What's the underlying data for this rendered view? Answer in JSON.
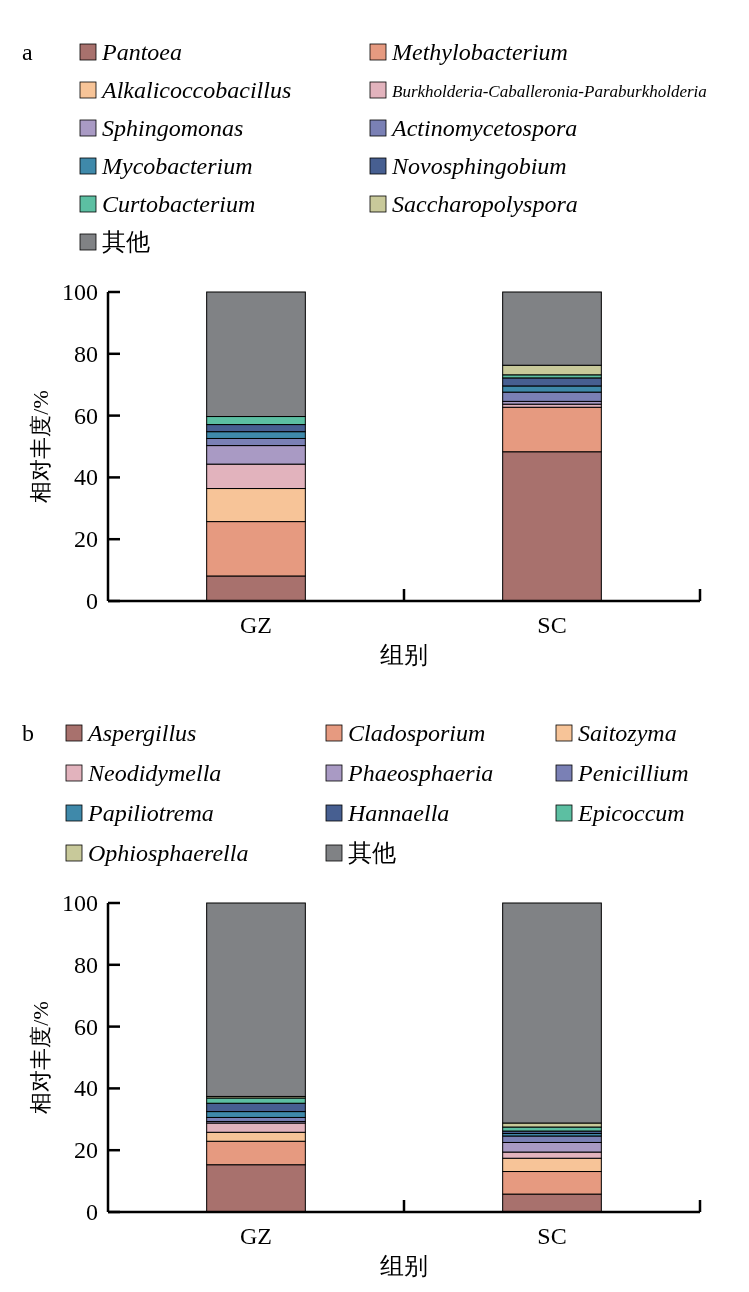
{
  "chart_data": [
    {
      "type": "bar",
      "title": "a",
      "stacked": true,
      "legend": "top",
      "ylabel": "相对丰度/%",
      "xlabel": "组别",
      "categories": [
        "GZ",
        "SC"
      ],
      "ylim": [
        0,
        100
      ],
      "yticks": [
        0,
        20,
        40,
        60,
        80,
        100
      ],
      "series": [
        {
          "name": "Pantoea",
          "color": "#a8716d",
          "values": [
            8.1,
            48.3
          ]
        },
        {
          "name": "Methylobacterium",
          "color": "#e69a80",
          "values": [
            17.6,
            14.4
          ]
        },
        {
          "name": "Alkalicoccobacillus",
          "color": "#f7c498",
          "values": [
            10.7,
            0
          ]
        },
        {
          "name": "Burkholderia-Caballeronia-Paraburkholderia",
          "color": "#e2b3bd",
          "values": [
            7.9,
            1.0
          ]
        },
        {
          "name": "Sphingomonas",
          "color": "#a99ac4",
          "values": [
            6.0,
            0.9
          ]
        },
        {
          "name": "Actinomycetospora",
          "color": "#7a80b5",
          "values": [
            2.3,
            3.0
          ]
        },
        {
          "name": "Mycobacterium",
          "color": "#3f89aa",
          "values": [
            2.2,
            2.0
          ]
        },
        {
          "name": "Novosphingobium",
          "color": "#475f91",
          "values": [
            2.3,
            2.6
          ]
        },
        {
          "name": "Curtobacterium",
          "color": "#5cbfa2",
          "values": [
            2.6,
            1.0
          ]
        },
        {
          "name": "Saccharopolyspora",
          "color": "#c8c99a",
          "values": [
            null,
            3.1
          ]
        },
        {
          "name": "其他",
          "color": "#808285",
          "values": [
            40.3,
            23.7
          ]
        }
      ]
    },
    {
      "type": "bar",
      "title": "b",
      "stacked": true,
      "legend": "top",
      "ylabel": "相对丰度/%",
      "xlabel": "组别",
      "categories": [
        "GZ",
        "SC"
      ],
      "ylim": [
        0,
        100
      ],
      "yticks": [
        0,
        20,
        40,
        60,
        80,
        100
      ],
      "series": [
        {
          "name": "Aspergillus",
          "color": "#a8716d",
          "values": [
            15.3,
            5.8
          ]
        },
        {
          "name": "Cladosporium",
          "color": "#e69a80",
          "values": [
            7.6,
            7.3
          ]
        },
        {
          "name": "Saitozyma",
          "color": "#f7c498",
          "values": [
            2.9,
            4.3
          ]
        },
        {
          "name": "Neodidymella",
          "color": "#e2b3bd",
          "values": [
            3.0,
            2.0
          ]
        },
        {
          "name": "Phaeosphaeria",
          "color": "#a99ac4",
          "values": [
            0.5,
            3.1
          ]
        },
        {
          "name": "Penicillium",
          "color": "#7a80b5",
          "values": [
            1.3,
            2.1
          ]
        },
        {
          "name": "Papiliotrema",
          "color": "#3f89aa",
          "values": [
            1.9,
            0.8
          ]
        },
        {
          "name": "Hannaella",
          "color": "#475f91",
          "values": [
            2.7,
            0.8
          ]
        },
        {
          "name": "Epicoccum",
          "color": "#5cbfa2",
          "values": [
            1.7,
            1.3
          ]
        },
        {
          "name": "Ophiosphaerella",
          "color": "#c8c99a",
          "values": [
            0.5,
            1.3
          ]
        },
        {
          "name": "其他",
          "color": "#808285",
          "values": [
            62.6,
            71.2
          ]
        }
      ]
    }
  ]
}
